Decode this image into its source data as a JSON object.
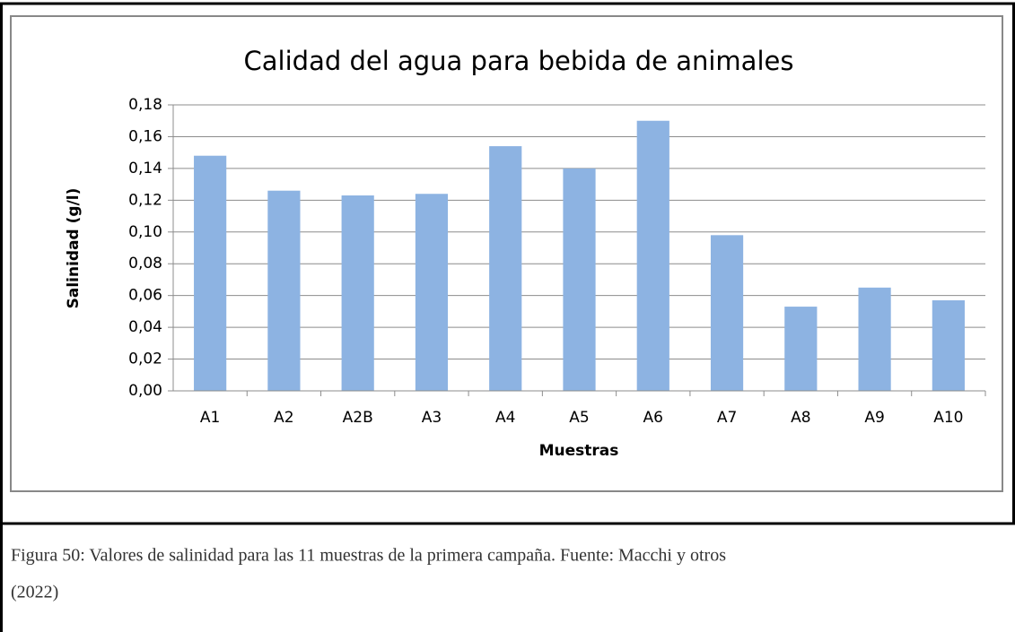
{
  "chart_data": {
    "type": "bar",
    "title": "Calidad del agua para bebida de animales",
    "x_label": "Muestras",
    "y_label": "Salinidad (g/l)",
    "categories": [
      "A1",
      "A2",
      "A2B",
      "A3",
      "A4",
      "A5",
      "A6",
      "A7",
      "A8",
      "A9",
      "A10"
    ],
    "values": [
      0.148,
      0.126,
      0.123,
      0.124,
      0.154,
      0.14,
      0.17,
      0.098,
      0.053,
      0.065,
      0.057
    ],
    "color": "#8db3e2",
    "ylim": [
      0,
      0.18
    ],
    "yticks": [
      {
        "value": 0,
        "label": "0,00"
      },
      {
        "value": 0.02,
        "label": "0,02"
      },
      {
        "value": 0.04,
        "label": "0,04"
      },
      {
        "value": 0.06,
        "label": "0,06"
      },
      {
        "value": 0.08,
        "label": "0,08"
      },
      {
        "value": 0.1,
        "label": "0,10"
      },
      {
        "value": 0.12,
        "label": "0,12"
      },
      {
        "value": 0.14,
        "label": "0,14"
      },
      {
        "value": 0.16,
        "label": "0,16"
      },
      {
        "value": 0.18,
        "label": "0,18"
      }
    ],
    "grid": true
  },
  "caption": {
    "line1": "Figura 50: Valores de salinidad para las 11 muestras de la primera campaña.  Fuente: Macchi y otros",
    "line2": "(2022)"
  }
}
